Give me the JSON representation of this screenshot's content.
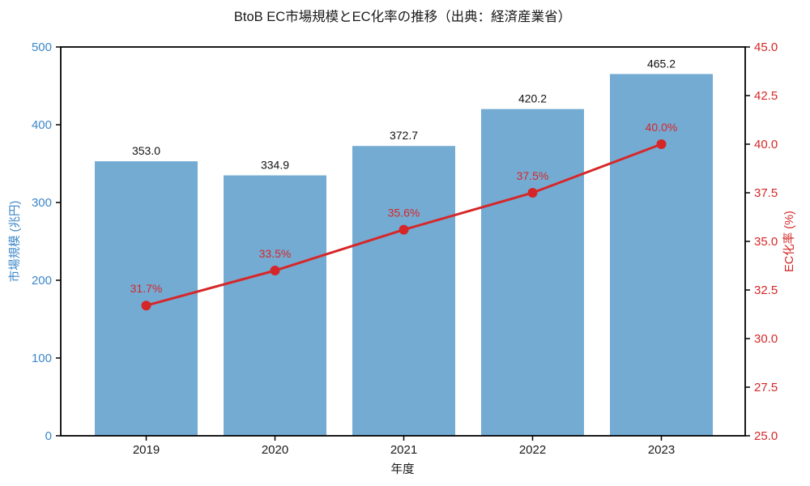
{
  "title": "BtoB EC市場規模とEC化率の推移（出典：経済産業省）",
  "chart_data": {
    "type": "bar+line",
    "categories": [
      "2019",
      "2020",
      "2021",
      "2022",
      "2023"
    ],
    "series": [
      {
        "name": "市場規模",
        "type": "bar",
        "axis": "left",
        "values": [
          353.0,
          334.9,
          372.7,
          420.2,
          465.2
        ],
        "labels": [
          "353.0",
          "334.9",
          "372.7",
          "420.2",
          "465.2"
        ],
        "color": "#74abd3"
      },
      {
        "name": "EC化率",
        "type": "line",
        "axis": "right",
        "values": [
          31.7,
          33.5,
          35.6,
          37.5,
          40.0
        ],
        "labels": [
          "31.7%",
          "33.5%",
          "35.6%",
          "37.5%",
          "40.0%"
        ],
        "color": "#d62728"
      }
    ],
    "xlabel": "年度",
    "ylabel_left": "市場規模 (兆円)",
    "ylabel_right": "EC化率 (%)",
    "ylim_left": [
      0,
      500
    ],
    "ylim_right": [
      25,
      45
    ],
    "yticks_left": [
      "0",
      "100",
      "200",
      "300",
      "400",
      "500"
    ],
    "yticks_right": [
      "25.0",
      "27.5",
      "30.0",
      "32.5",
      "35.0",
      "37.5",
      "40.0",
      "42.5",
      "45.0"
    ],
    "left_axis_color": "#3c87c8",
    "right_axis_color": "#d62728",
    "frame_color": "#000000",
    "grid": false,
    "legend": "none"
  }
}
